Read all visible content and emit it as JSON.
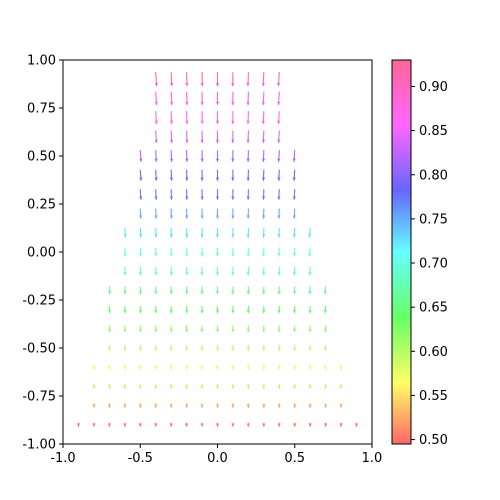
{
  "chart_data": {
    "type": "quiver",
    "title": "",
    "xlabel": "",
    "ylabel": "",
    "xlim": [
      -1.0,
      1.0
    ],
    "ylim": [
      -1.0,
      1.0
    ],
    "grid": false,
    "colormap": "gist_rainbow",
    "alpha": 0.6,
    "x_ticks": [
      "-1.0",
      "-0.5",
      "0.0",
      "0.5",
      "1.0"
    ],
    "y_ticks": [
      "-1.00",
      "-0.75",
      "-0.50",
      "-0.25",
      "0.00",
      "0.25",
      "0.50",
      "0.75",
      "1.00"
    ],
    "colorbar": {
      "range": [
        0.495,
        0.93
      ],
      "ticks": [
        "0.50",
        "0.55",
        "0.60",
        "0.65",
        "0.70",
        "0.75",
        "0.80",
        "0.85",
        "0.90"
      ]
    },
    "grid_spacing": 0.1,
    "y_range": [
      -0.9,
      0.9
    ],
    "half_width_at_bottom": 0.9,
    "half_width_at_top": 0.4,
    "vector_field": "u = -x*(y-1.1)/8 scaled, v = -1, color = magnitude"
  }
}
